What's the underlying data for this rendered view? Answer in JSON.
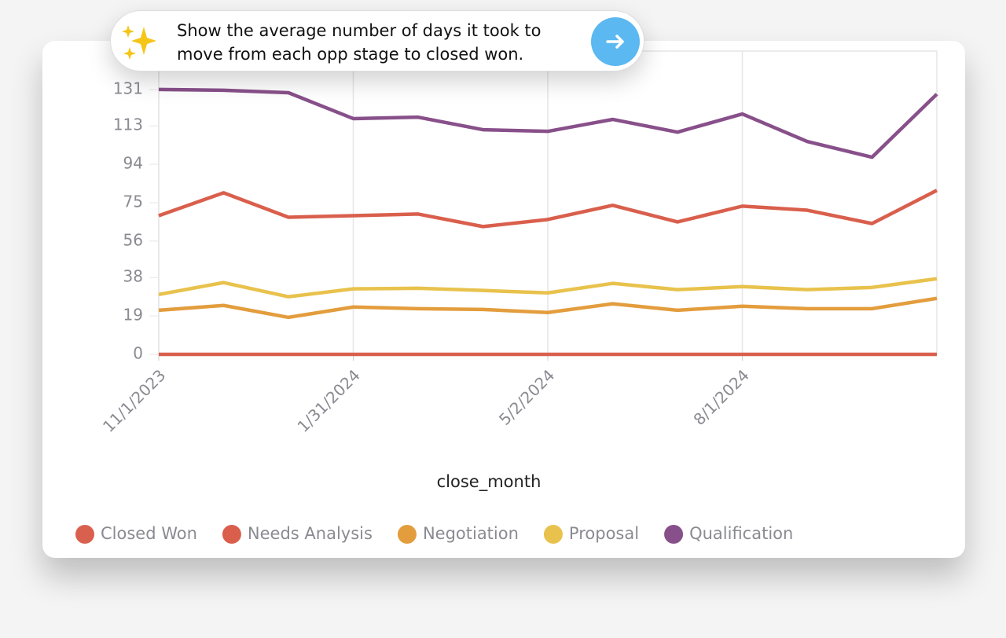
{
  "prompt": "Show the average number of days it took to move from each opp stage to closed won.",
  "chart_data": {
    "type": "line",
    "x_label": "close_month",
    "categories": [
      "11/1/2023",
      null,
      null,
      "1/31/2024",
      null,
      null,
      "5/2/2024",
      null,
      null,
      "8/1/2024",
      null,
      null,
      null
    ],
    "ylim": [
      0,
      150
    ],
    "yticks": [
      0,
      19,
      38,
      56,
      75,
      94,
      113,
      131
    ],
    "grid": true,
    "legend": "bottom-left",
    "series": [
      {
        "name": "Closed Won",
        "color": "#d9604e",
        "values": [
          0,
          0,
          0,
          0,
          0,
          0,
          0,
          0,
          0,
          0,
          0,
          0,
          0
        ]
      },
      {
        "name": "Needs Analysis",
        "color": "#d95f4c",
        "values": [
          68.6,
          79.9,
          67.8,
          68.6,
          69.4,
          63.2,
          66.7,
          73.7,
          65.5,
          73.3,
          71.3,
          64.7,
          81.1
        ]
      },
      {
        "name": "Negotiation",
        "color": "#e39d3d",
        "values": [
          21.8,
          24.2,
          18.3,
          23.4,
          22.6,
          22.2,
          20.7,
          25,
          21.8,
          23.8,
          22.6,
          22.6,
          27.7
        ]
      },
      {
        "name": "Proposal",
        "color": "#e8c24c",
        "values": [
          29.6,
          35.5,
          28.5,
          32.4,
          32.7,
          31.6,
          30.4,
          35.1,
          32,
          33.5,
          32,
          33.1,
          37.4
        ]
      },
      {
        "name": "Qualification",
        "color": "#88508a",
        "values": [
          131,
          130.6,
          129.4,
          116.6,
          117.3,
          111.1,
          110.3,
          116.2,
          109.9,
          118.9,
          105.3,
          97.5,
          128.7
        ]
      }
    ]
  }
}
